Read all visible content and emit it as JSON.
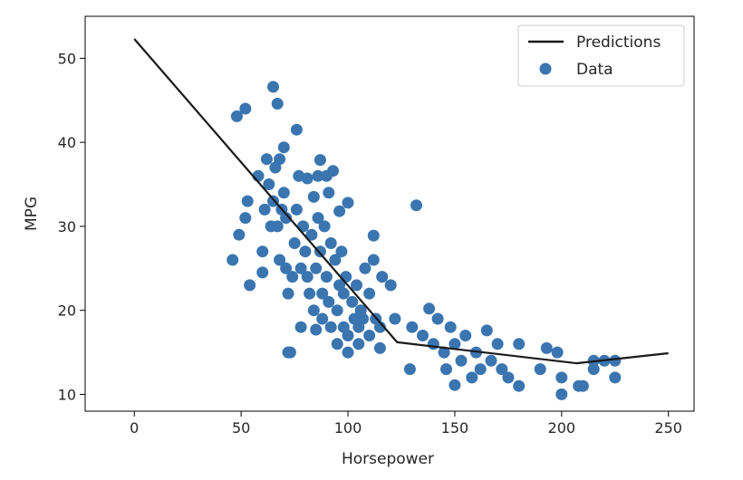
{
  "chart_data": {
    "type": "scatter",
    "xlabel": "Horsepower",
    "ylabel": "MPG",
    "xlim": [
      -23,
      262
    ],
    "ylim": [
      8,
      55
    ],
    "xticks": [
      0,
      50,
      100,
      150,
      200,
      250
    ],
    "yticks": [
      10,
      20,
      30,
      40,
      50
    ],
    "legend_position": "top-right",
    "grid": false,
    "legend": [
      {
        "label": "Predictions",
        "kind": "line"
      },
      {
        "label": "Data",
        "kind": "marker"
      }
    ],
    "series": [
      {
        "name": "Predictions",
        "kind": "line",
        "color": "#1a1a1a",
        "points": [
          [
            0,
            52.3
          ],
          [
            123,
            16.2
          ],
          [
            207,
            13.7
          ],
          [
            250,
            14.9
          ]
        ]
      },
      {
        "name": "Data",
        "kind": "scatter",
        "color": "#3a75b0",
        "points": [
          [
            46,
            26
          ],
          [
            48,
            43.1
          ],
          [
            49,
            29
          ],
          [
            52,
            44
          ],
          [
            52,
            31
          ],
          [
            53,
            33
          ],
          [
            54,
            23
          ],
          [
            58,
            36
          ],
          [
            60,
            27
          ],
          [
            60,
            24.5
          ],
          [
            61,
            32
          ],
          [
            62,
            38
          ],
          [
            63,
            35
          ],
          [
            64,
            30
          ],
          [
            65,
            46.6
          ],
          [
            65,
            33
          ],
          [
            66,
            37
          ],
          [
            67,
            44.6
          ],
          [
            67,
            30
          ],
          [
            68,
            38
          ],
          [
            68,
            26
          ],
          [
            69,
            32
          ],
          [
            70,
            39.4
          ],
          [
            70,
            34
          ],
          [
            71,
            31
          ],
          [
            71,
            25
          ],
          [
            72,
            15
          ],
          [
            72,
            22
          ],
          [
            73,
            15
          ],
          [
            74,
            24
          ],
          [
            75,
            28
          ],
          [
            76,
            41.5
          ],
          [
            76,
            32
          ],
          [
            77,
            36
          ],
          [
            78,
            25
          ],
          [
            78,
            18
          ],
          [
            79,
            30
          ],
          [
            80,
            27
          ],
          [
            81,
            35.7
          ],
          [
            81,
            24
          ],
          [
            82,
            22
          ],
          [
            83,
            29
          ],
          [
            84,
            33.5
          ],
          [
            84,
            20
          ],
          [
            85,
            25
          ],
          [
            85,
            17.7
          ],
          [
            86,
            36
          ],
          [
            86,
            31
          ],
          [
            87,
            27
          ],
          [
            87,
            37.9
          ],
          [
            88,
            22
          ],
          [
            88,
            19
          ],
          [
            89,
            30
          ],
          [
            90,
            36
          ],
          [
            90,
            24
          ],
          [
            91,
            34
          ],
          [
            91,
            21
          ],
          [
            92,
            28
          ],
          [
            92,
            18
          ],
          [
            93,
            36.6
          ],
          [
            94,
            26
          ],
          [
            95,
            20
          ],
          [
            95,
            16
          ],
          [
            96,
            23
          ],
          [
            96,
            31.8
          ],
          [
            97,
            27
          ],
          [
            98,
            22
          ],
          [
            98,
            18
          ],
          [
            99,
            24
          ],
          [
            100,
            32.8
          ],
          [
            100,
            17
          ],
          [
            100,
            15
          ],
          [
            102,
            21
          ],
          [
            103,
            19
          ],
          [
            104,
            23
          ],
          [
            105,
            18
          ],
          [
            105,
            16
          ],
          [
            106,
            20
          ],
          [
            107,
            19
          ],
          [
            108,
            25
          ],
          [
            110,
            22
          ],
          [
            110,
            17
          ],
          [
            112,
            28.9
          ],
          [
            112,
            26
          ],
          [
            113,
            19
          ],
          [
            115,
            18
          ],
          [
            115,
            15.5
          ],
          [
            116,
            24
          ],
          [
            120,
            23
          ],
          [
            122,
            19
          ],
          [
            129,
            13
          ],
          [
            130,
            18
          ],
          [
            132,
            32.5
          ],
          [
            135,
            17
          ],
          [
            138,
            20.2
          ],
          [
            140,
            16
          ],
          [
            142,
            19
          ],
          [
            145,
            15
          ],
          [
            146,
            13
          ],
          [
            148,
            18
          ],
          [
            150,
            11.1
          ],
          [
            150,
            16
          ],
          [
            153,
            14
          ],
          [
            155,
            17
          ],
          [
            158,
            12
          ],
          [
            160,
            15
          ],
          [
            162,
            13
          ],
          [
            165,
            17.6
          ],
          [
            167,
            14
          ],
          [
            170,
            16
          ],
          [
            172,
            13
          ],
          [
            175,
            12
          ],
          [
            180,
            16
          ],
          [
            180,
            11
          ],
          [
            190,
            13
          ],
          [
            193,
            15.5
          ],
          [
            198,
            15
          ],
          [
            200,
            12
          ],
          [
            200,
            10
          ],
          [
            208,
            11
          ],
          [
            210,
            11
          ],
          [
            215,
            14
          ],
          [
            215,
            13
          ],
          [
            220,
            14
          ],
          [
            225,
            14
          ],
          [
            225,
            12
          ]
        ]
      }
    ]
  }
}
